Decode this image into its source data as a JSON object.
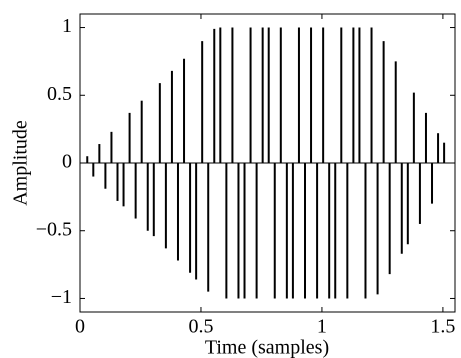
{
  "chart_data": {
    "type": "stem",
    "xlabel": "Time (samples)",
    "ylabel": "Amplitude",
    "color": "#000000",
    "x": [
      0.03,
      0.055,
      0.08,
      0.105,
      0.13,
      0.155,
      0.18,
      0.205,
      0.23,
      0.255,
      0.28,
      0.305,
      0.33,
      0.355,
      0.38,
      0.405,
      0.43,
      0.455,
      0.48,
      0.505,
      0.53,
      0.555,
      0.58,
      0.605,
      0.63,
      0.655,
      0.68,
      0.705,
      0.73,
      0.755,
      0.78,
      0.805,
      0.83,
      0.855,
      0.88,
      0.905,
      0.93,
      0.955,
      0.98,
      1.005,
      1.03,
      1.055,
      1.08,
      1.105,
      1.13,
      1.155,
      1.18,
      1.205,
      1.23,
      1.255,
      1.28,
      1.305,
      1.33,
      1.355,
      1.38,
      1.405,
      1.43,
      1.455,
      1.48,
      1.505
    ],
    "values": [
      0.05,
      -0.1,
      0.14,
      -0.19,
      0.23,
      -0.28,
      -0.32,
      0.37,
      -0.41,
      0.46,
      -0.5,
      -0.54,
      0.59,
      -0.63,
      0.68,
      -0.72,
      0.77,
      -0.81,
      -0.86,
      0.9,
      -0.95,
      0.99,
      1,
      -1,
      1,
      -1,
      -1,
      1,
      -1,
      1,
      1,
      -1,
      1,
      -1,
      -1,
      1,
      -1,
      1,
      -1,
      1,
      -1,
      -1,
      1,
      -1,
      1,
      1,
      -1,
      1,
      -0.97,
      0.9,
      -0.82,
      0.75,
      -0.67,
      -0.6,
      0.52,
      -0.45,
      0.37,
      -0.3,
      0.22,
      0.15
    ],
    "xlim": [
      0,
      1.55
    ],
    "ylim": [
      -1.1,
      1.1
    ],
    "xticks": [
      0,
      0.5,
      1,
      1.5
    ],
    "yticks": [
      {
        "value": -1,
        "label": "−1"
      },
      {
        "value": -0.5,
        "label": "−0.5"
      },
      0,
      0.5,
      1
    ]
  }
}
